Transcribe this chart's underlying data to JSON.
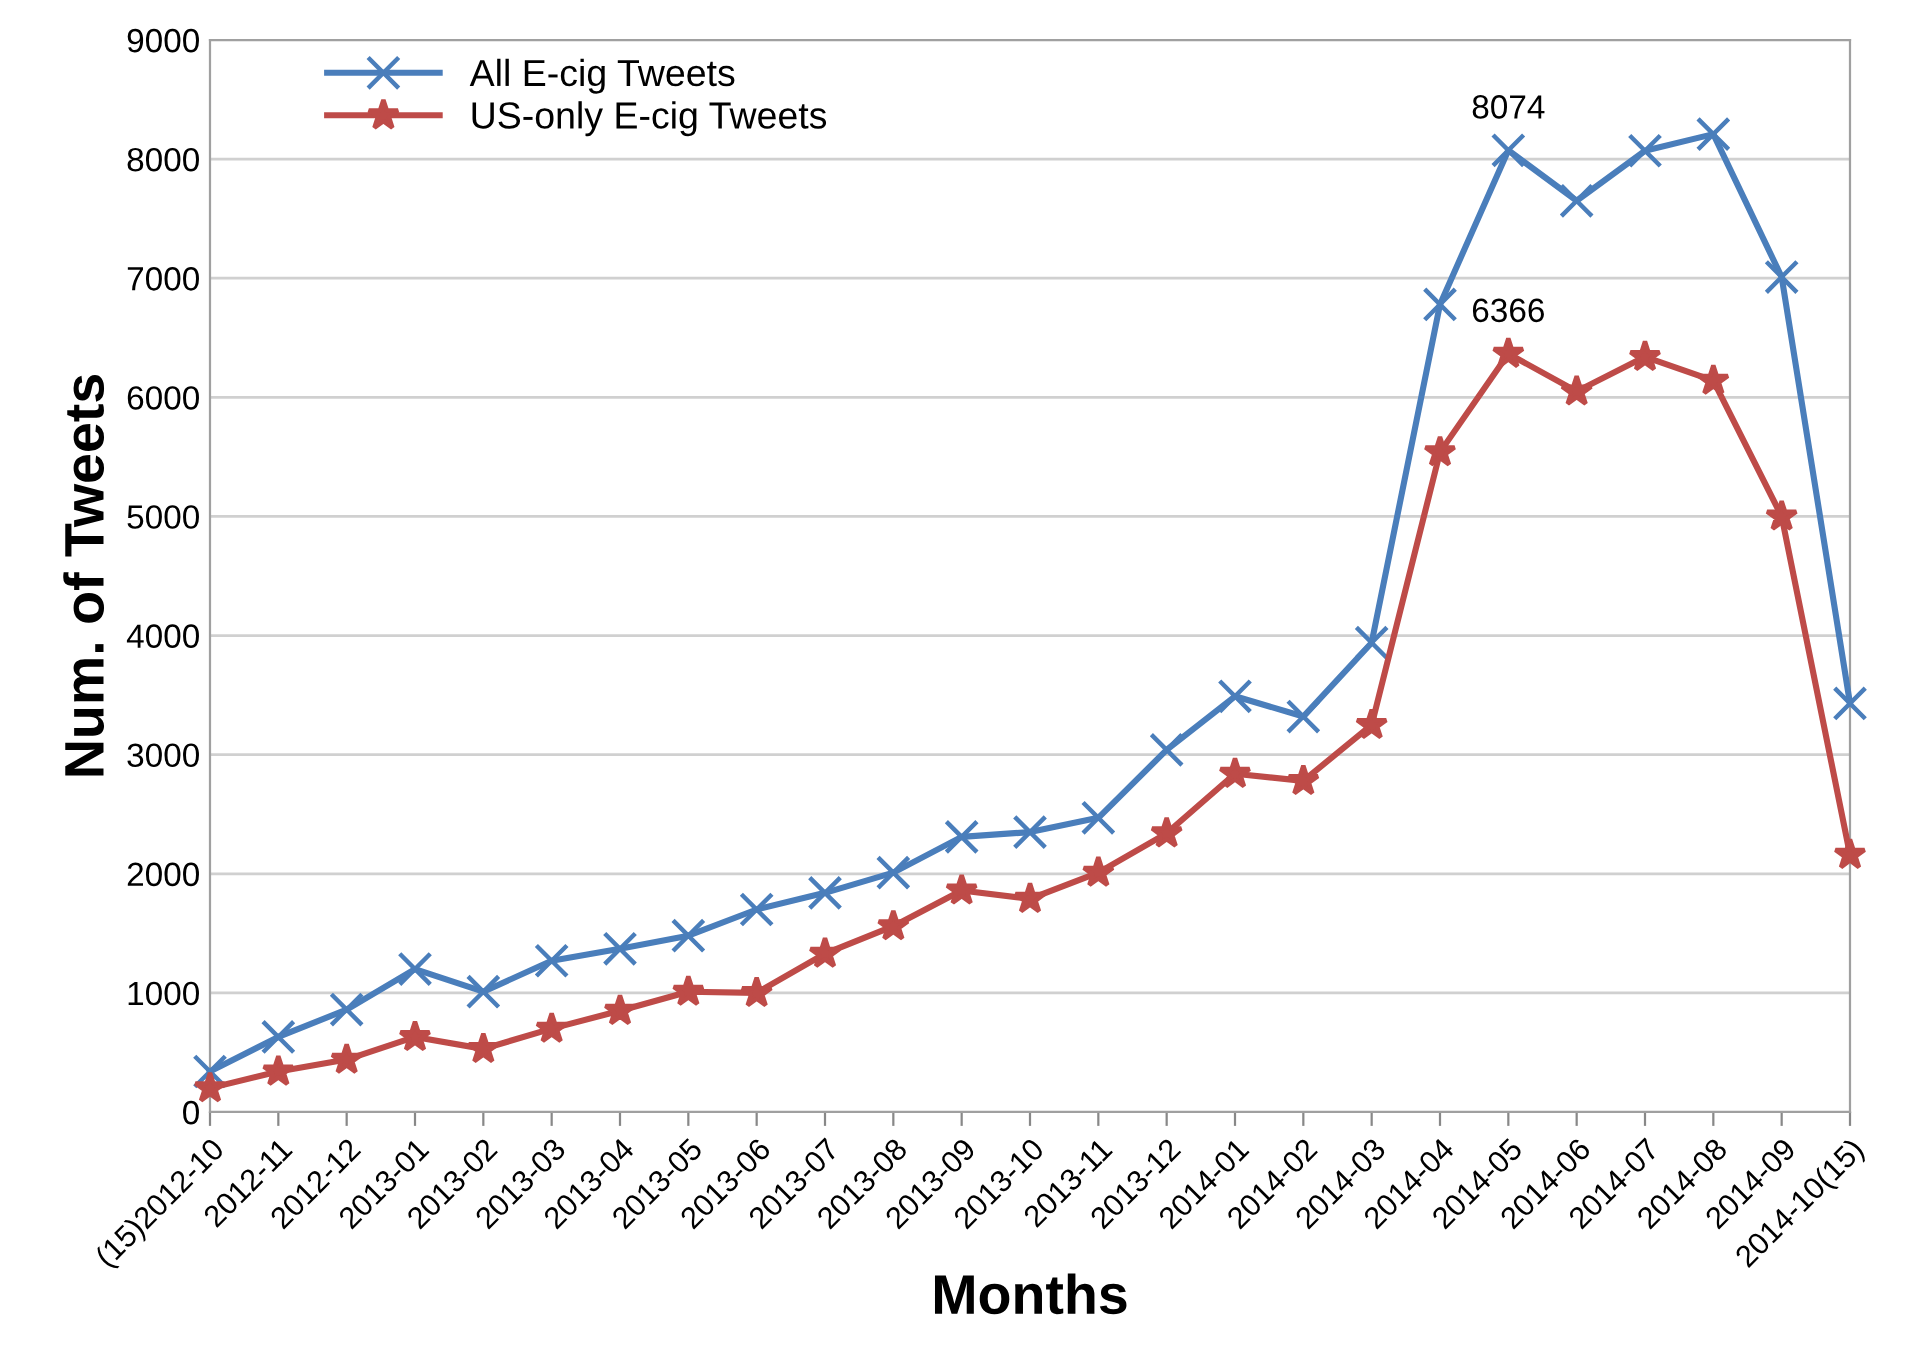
{
  "chart_data": {
    "type": "line",
    "xlabel": "Months",
    "ylabel": "Num. of Tweets",
    "categories": [
      "(15)2012-10",
      "2012-11",
      "2012-12",
      "2013-01",
      "2013-02",
      "2013-03",
      "2013-04",
      "2013-05",
      "2013-06",
      "2013-07",
      "2013-08",
      "2013-09",
      "2013-10",
      "2013-11",
      "2013-12",
      "2014-01",
      "2014-02",
      "2014-03",
      "2014-04",
      "2014-05",
      "2014-06",
      "2014-07",
      "2014-08",
      "2014-09",
      "2014-10(15)"
    ],
    "series": [
      {
        "name": "All E-cig Tweets",
        "color": "#4a7ebb",
        "marker": "cross",
        "values": [
          340,
          630,
          860,
          1200,
          1010,
          1270,
          1370,
          1480,
          1700,
          1840,
          2010,
          2310,
          2350,
          2470,
          3040,
          3490,
          3320,
          3940,
          6780,
          8074,
          7650,
          8070,
          8210,
          7010,
          3430
        ],
        "value_labels": [
          null,
          null,
          null,
          null,
          null,
          null,
          null,
          null,
          null,
          null,
          null,
          null,
          null,
          null,
          null,
          null,
          null,
          null,
          null,
          "8074",
          null,
          null,
          null,
          null,
          null
        ]
      },
      {
        "name": "US-only E-cig Tweets",
        "color": "#be4b48",
        "marker": "star",
        "values": [
          200,
          340,
          440,
          630,
          530,
          700,
          850,
          1010,
          1000,
          1330,
          1560,
          1860,
          1790,
          2010,
          2340,
          2840,
          2780,
          3250,
          5540,
          6366,
          6050,
          6340,
          6140,
          5000,
          2160
        ],
        "value_labels": [
          null,
          null,
          null,
          null,
          null,
          null,
          null,
          null,
          null,
          null,
          null,
          null,
          null,
          null,
          null,
          null,
          null,
          null,
          null,
          "6366",
          null,
          null,
          null,
          null,
          null
        ]
      }
    ],
    "ylim": [
      0,
      9000
    ],
    "yticks": [
      0,
      1000,
      2000,
      3000,
      4000,
      5000,
      6000,
      7000,
      8000,
      9000
    ],
    "grid": "y",
    "legend": "top left",
    "line_style": "solid"
  }
}
